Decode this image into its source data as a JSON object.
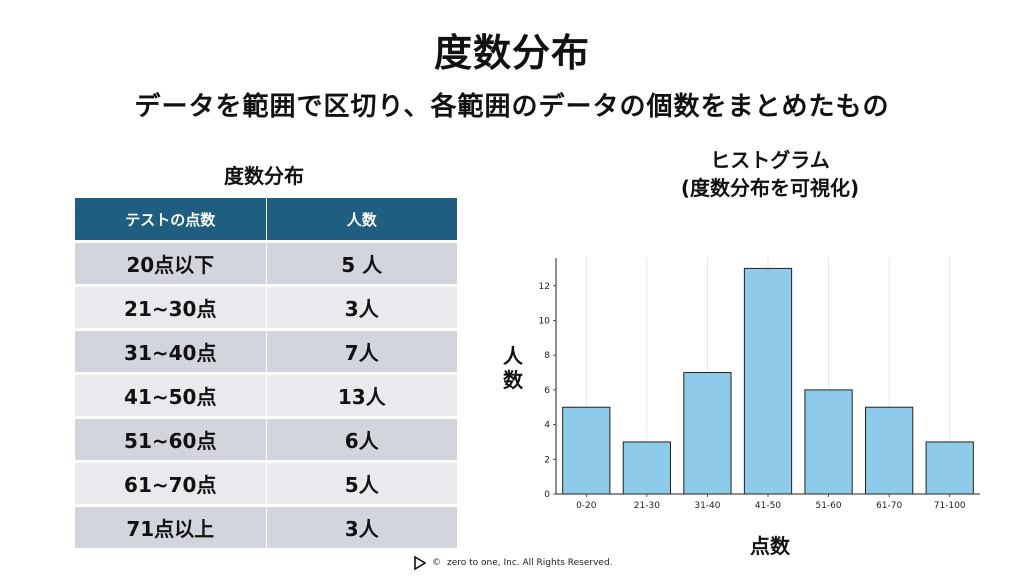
{
  "title": "度数分布",
  "subtitle": "データを範囲で区切り、各範囲のデータの個数をまとめたもの",
  "table": {
    "title": "度数分布",
    "headers": [
      "テストの点数",
      "人数"
    ],
    "rows": [
      [
        "20点以下",
        "5 人"
      ],
      [
        "21~30点",
        "3人"
      ],
      [
        "31~40点",
        "7人"
      ],
      [
        "41~50点",
        "13人"
      ],
      [
        "51~60点",
        "6人"
      ],
      [
        "61~70点",
        "5人"
      ],
      [
        "71点以上",
        "3人"
      ]
    ]
  },
  "chart_data": {
    "type": "bar",
    "title": "ヒストグラム",
    "subtitle": "(度数分布を可視化)",
    "xlabel": "点数",
    "ylabel": "人数",
    "categories": [
      "0-20",
      "21-30",
      "31-40",
      "41-50",
      "51-60",
      "61-70",
      "71-100"
    ],
    "values": [
      5,
      3,
      7,
      13,
      6,
      5,
      3
    ],
    "ylim": [
      0,
      13.6
    ],
    "yticks": [
      0,
      2,
      4,
      6,
      8,
      10,
      12
    ],
    "grid": "vertical",
    "bar_color": "#8ecbea",
    "bar_edge": "#222222"
  },
  "footer": {
    "copyright": "©",
    "text": "zero to one, Inc. All Rights Reserved."
  },
  "colors": {
    "header_bg": "#1f5e80",
    "row_dark": "#d2d5db",
    "row_light": "#e8eaed"
  }
}
